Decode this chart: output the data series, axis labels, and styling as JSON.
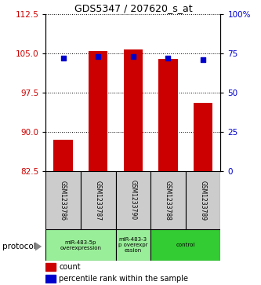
{
  "title": "GDS5347 / 207620_s_at",
  "samples": [
    "GSM1233786",
    "GSM1233787",
    "GSM1233790",
    "GSM1233788",
    "GSM1233789"
  ],
  "bar_values": [
    88.5,
    105.5,
    105.8,
    104.0,
    95.5
  ],
  "dot_values": [
    72,
    73,
    73,
    72,
    71
  ],
  "ylim_left": [
    82.5,
    112.5
  ],
  "ylim_right": [
    0,
    100
  ],
  "yticks_left": [
    82.5,
    90,
    97.5,
    105,
    112.5
  ],
  "yticks_right": [
    0,
    25,
    50,
    75,
    100
  ],
  "bar_color": "#cc0000",
  "dot_color": "#0000cc",
  "bar_bottom": 82.5,
  "protocol_groups": [
    {
      "label": "miR-483-5p\noverexpression",
      "start": 0,
      "end": 2,
      "color": "#99ee99"
    },
    {
      "label": "miR-483-3\np overexpr\nession",
      "start": 2,
      "end": 3,
      "color": "#99ee99"
    },
    {
      "label": "control",
      "start": 3,
      "end": 5,
      "color": "#33cc33"
    }
  ],
  "protocol_label": "protocol",
  "legend_count_label": "count",
  "legend_percentile_label": "percentile rank within the sample",
  "bg_color": "#ffffff",
  "left_tick_color": "#cc0000",
  "right_tick_color": "#0000cc",
  "sample_box_color": "#cccccc",
  "title_fontsize": 9
}
